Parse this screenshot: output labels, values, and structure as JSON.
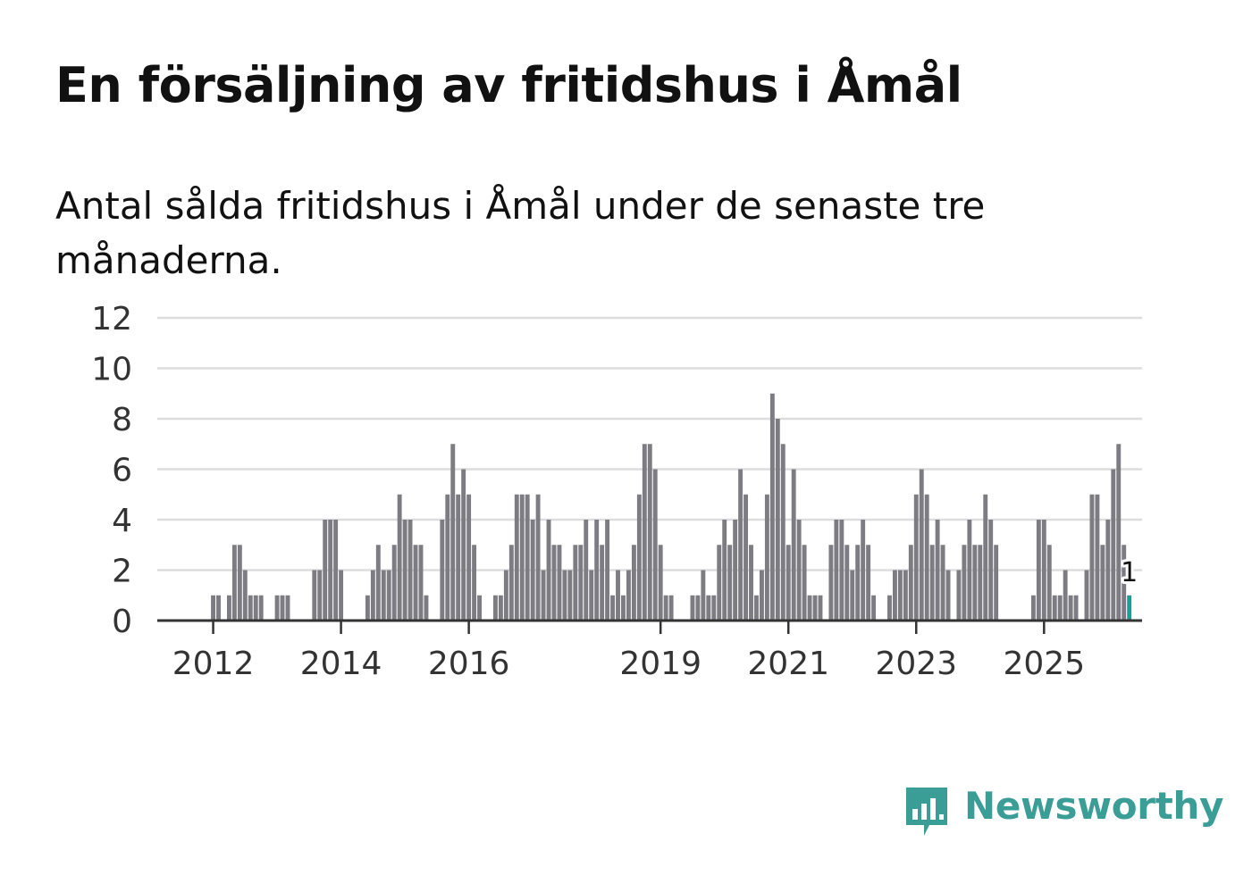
{
  "title": "En försäljning av fritidshus i Åmål",
  "subtitle": "Antal sålda fritidshus i Åmål under de senaste tre månaderna.",
  "brand": {
    "name": "Newsworthy"
  },
  "colors": {
    "bar": "#7d7c82",
    "highlight": "#1c9e97",
    "grid": "#dddddd",
    "axis": "#333333",
    "brand": "#3a9e97"
  },
  "chart_data": {
    "type": "bar",
    "ylim": [
      0,
      12
    ],
    "yticks": [
      0,
      2,
      4,
      6,
      8,
      10,
      12
    ],
    "grid": true,
    "xlabel": "",
    "ylabel": "",
    "x_start": "2011-03",
    "xtick_labels": [
      {
        "label": "2012",
        "month": "2012-01"
      },
      {
        "label": "2014",
        "month": "2014-01"
      },
      {
        "label": "2016",
        "month": "2016-01"
      },
      {
        "label": "2019",
        "month": "2019-01"
      },
      {
        "label": "2021",
        "month": "2021-01"
      },
      {
        "label": "2023",
        "month": "2023-01"
      },
      {
        "label": "2025",
        "month": "2025-01"
      }
    ],
    "values": [
      0,
      0,
      0,
      0,
      0,
      0,
      0,
      0,
      0,
      0,
      1,
      1,
      0,
      1,
      3,
      3,
      2,
      1,
      1,
      1,
      0,
      0,
      1,
      1,
      1,
      0,
      0,
      0,
      0,
      2,
      2,
      4,
      4,
      4,
      2,
      0,
      0,
      0,
      0,
      1,
      2,
      3,
      2,
      2,
      3,
      5,
      4,
      4,
      3,
      3,
      1,
      0,
      0,
      4,
      5,
      7,
      5,
      6,
      5,
      3,
      1,
      0,
      0,
      1,
      1,
      2,
      3,
      5,
      5,
      5,
      4,
      5,
      2,
      4,
      3,
      3,
      2,
      2,
      3,
      3,
      4,
      2,
      4,
      3,
      4,
      1,
      2,
      1,
      2,
      3,
      5,
      7,
      7,
      6,
      3,
      1,
      1,
      0,
      0,
      0,
      1,
      1,
      2,
      1,
      1,
      3,
      4,
      3,
      4,
      6,
      5,
      3,
      1,
      2,
      5,
      9,
      8,
      7,
      3,
      6,
      4,
      3,
      1,
      1,
      1,
      0,
      3,
      4,
      4,
      3,
      2,
      3,
      4,
      3,
      1,
      0,
      0,
      1,
      2,
      2,
      2,
      3,
      5,
      6,
      5,
      3,
      4,
      3,
      2,
      0,
      2,
      3,
      4,
      3,
      3,
      5,
      4,
      3,
      0,
      0,
      0,
      0,
      0,
      0,
      1,
      4,
      4,
      3,
      1,
      1,
      2,
      1,
      1,
      0,
      2,
      5,
      5,
      3,
      4,
      6,
      7,
      3,
      1
    ],
    "highlight_last": true,
    "annotations": [
      {
        "text": "1",
        "target": "last"
      }
    ]
  }
}
